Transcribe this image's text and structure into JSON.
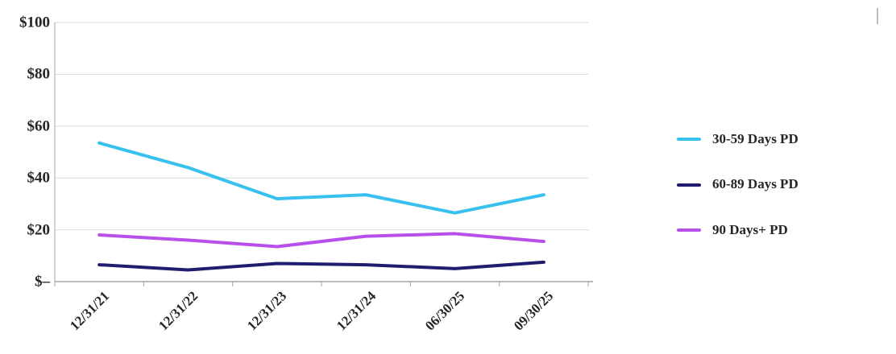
{
  "chart_data": {
    "type": "line",
    "title": "",
    "categories": [
      "12/31/21",
      "12/31/22",
      "12/31/23",
      "12/31/24",
      "06/30/25",
      "09/30/25"
    ],
    "series": [
      {
        "name": "30-59 Days PD",
        "color": "#38C1EF",
        "values": [
          53.5,
          44,
          32,
          33.5,
          26.5,
          33.5
        ]
      },
      {
        "name": "60-89 Days PD",
        "color": "#201D6F",
        "values": [
          6.5,
          4.5,
          7,
          6.5,
          5,
          7.5
        ]
      },
      {
        "name": "90 Days+ PD",
        "color": "#B750EB",
        "values": [
          18,
          16,
          13.5,
          17.5,
          18.5,
          15.5
        ]
      }
    ],
    "ylim": [
      0,
      100
    ],
    "y_ticks": [
      {
        "value": 0,
        "label": "$–"
      },
      {
        "value": 20,
        "label": "$20"
      },
      {
        "value": 40,
        "label": "$40"
      },
      {
        "value": 60,
        "label": "$60"
      },
      {
        "value": 80,
        "label": "$80"
      },
      {
        "value": 100,
        "label": "$100"
      }
    ],
    "grid": true,
    "legend_position": "right"
  },
  "colors": {
    "grid": "#D9D9D9",
    "axis": "#A6A6A6",
    "text": "#262626",
    "background": "#FFFFFF"
  }
}
